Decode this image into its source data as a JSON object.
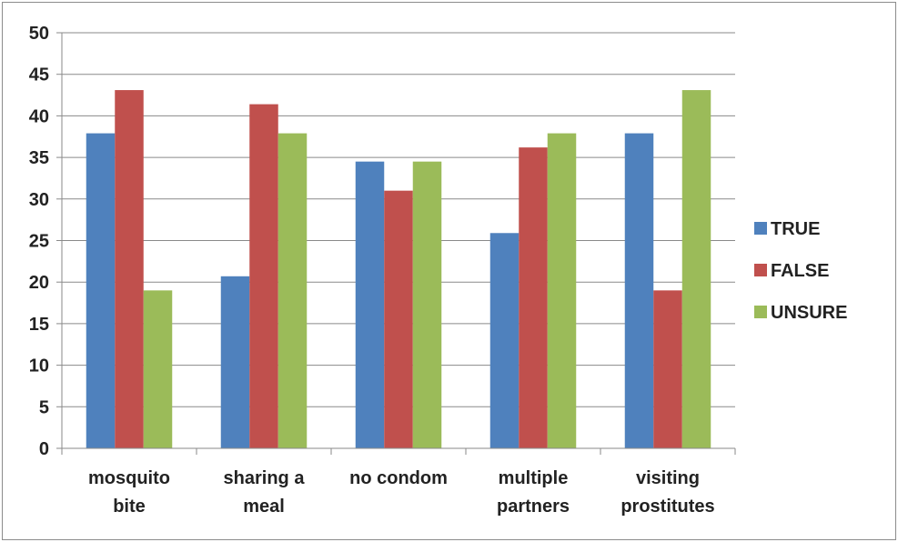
{
  "chart_data": {
    "type": "bar",
    "title": "",
    "xlabel": "",
    "ylabel": "",
    "ylim": [
      0,
      50
    ],
    "yticks": [
      0,
      5,
      10,
      15,
      20,
      25,
      30,
      35,
      40,
      45,
      50
    ],
    "grid": true,
    "legend_position": "right",
    "categories": [
      [
        "mosquito",
        "bite"
      ],
      [
        "sharing a",
        "meal"
      ],
      [
        "no condom"
      ],
      [
        "multiple",
        "partners"
      ],
      [
        "visiting",
        "prostitutes"
      ]
    ],
    "series": [
      {
        "name": "TRUE",
        "color": "#4f81bd",
        "values": [
          37.9,
          20.7,
          34.5,
          25.9,
          37.9
        ]
      },
      {
        "name": "FALSE",
        "color": "#c0504d",
        "values": [
          43.1,
          41.4,
          31.0,
          36.2,
          19.0
        ]
      },
      {
        "name": "UNSURE",
        "color": "#9bbb59",
        "values": [
          19.0,
          37.9,
          34.5,
          37.9,
          43.1
        ]
      }
    ]
  }
}
